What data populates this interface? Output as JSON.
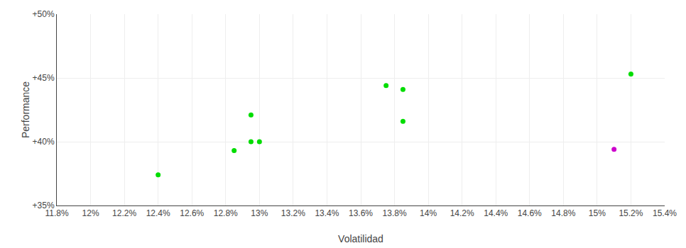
{
  "chart_data": {
    "type": "scatter",
    "xlabel": "Volatilidad",
    "ylabel": "Performance",
    "series": [
      {
        "color": "#00dd00",
        "x": [
          0.124,
          0.1285,
          0.1295,
          0.13,
          0.1295,
          0.1385,
          0.1375,
          0.1385,
          0.152
        ],
        "values": [
          0.374,
          0.393,
          0.4,
          0.4,
          0.421,
          0.441,
          0.444,
          0.416,
          0.453
        ]
      },
      {
        "color": "#cc00cc",
        "x": [
          0.151
        ],
        "values": [
          0.394
        ]
      }
    ],
    "xlim": [
      0.118,
      0.154
    ],
    "ylim": [
      0.35,
      0.5
    ],
    "xticks": [
      {
        "value": 0.118,
        "label": "11.8%"
      },
      {
        "value": 0.12,
        "label": "12%"
      },
      {
        "value": 0.122,
        "label": "12.2%"
      },
      {
        "value": 0.124,
        "label": "12.4%"
      },
      {
        "value": 0.126,
        "label": "12.6%"
      },
      {
        "value": 0.128,
        "label": "12.8%"
      },
      {
        "value": 0.13,
        "label": "13%"
      },
      {
        "value": 0.132,
        "label": "13.2%"
      },
      {
        "value": 0.134,
        "label": "13.4%"
      },
      {
        "value": 0.136,
        "label": "13.6%"
      },
      {
        "value": 0.138,
        "label": "13.8%"
      },
      {
        "value": 0.14,
        "label": "14%"
      },
      {
        "value": 0.142,
        "label": "14.2%"
      },
      {
        "value": 0.144,
        "label": "14.4%"
      },
      {
        "value": 0.146,
        "label": "14.6%"
      },
      {
        "value": 0.148,
        "label": "14.8%"
      },
      {
        "value": 0.15,
        "label": "15%"
      },
      {
        "value": 0.152,
        "label": "15.2%"
      },
      {
        "value": 0.154,
        "label": "15.4%"
      }
    ],
    "yticks": [
      {
        "value": 0.35,
        "label": "+35%"
      },
      {
        "value": 0.4,
        "label": "+40%"
      },
      {
        "value": 0.45,
        "label": "+45%"
      },
      {
        "value": 0.5,
        "label": "+50%"
      }
    ],
    "grid": true
  }
}
